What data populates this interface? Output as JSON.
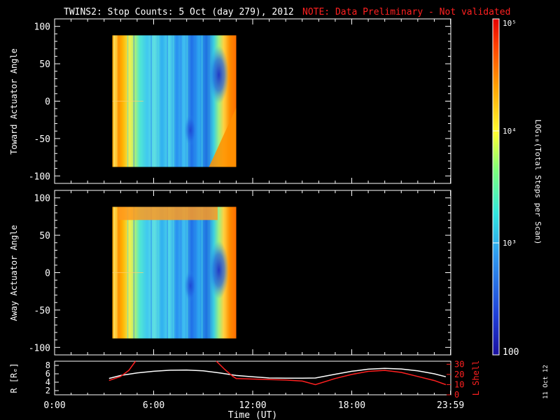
{
  "title": {
    "main": "TWINS2: Stop Counts:  5 Oct (day 279), 2012",
    "note": "NOTE: Data Preliminary - Not validated",
    "note_color": "#ff2020"
  },
  "side_stamp": "11 Oct 12",
  "colorbar": {
    "label": "LOG₁₀(Total Steps per Scan)",
    "ticks": [
      {
        "value": 100,
        "label": "100"
      },
      {
        "value": 1000,
        "label": "10³"
      },
      {
        "value": 10000,
        "label": "10⁴"
      },
      {
        "value": 100000,
        "label": "10⁵"
      }
    ],
    "range": [
      100,
      100000
    ],
    "scale": "log"
  },
  "chart_data": [
    {
      "type": "heatmap",
      "panel": "toward",
      "ylabel": "Toward Actuator Angle",
      "ylim": [
        -110,
        110
      ],
      "yticks": [
        -100,
        -50,
        0,
        50,
        100
      ],
      "xlim": [
        0,
        24
      ],
      "data_time_range": [
        3.5,
        11.0
      ],
      "data_angle_range": [
        -88,
        88
      ],
      "color_scale": "log"
    },
    {
      "type": "heatmap",
      "panel": "away",
      "ylabel": "Away Actuator Angle",
      "ylim": [
        -110,
        110
      ],
      "yticks": [
        -100,
        -50,
        0,
        50,
        100
      ],
      "xlim": [
        0,
        24
      ],
      "data_time_range": [
        3.5,
        11.0
      ],
      "data_angle_range": [
        -88,
        88
      ],
      "color_scale": "log"
    },
    {
      "type": "line",
      "panel": "orbit",
      "ylabel_left": "R [Rₑ]",
      "ylabel_right": "L Shell",
      "ylabel_right_color": "#ff2020",
      "ylim_left": [
        1,
        9
      ],
      "yticks_left": [
        2,
        4,
        6,
        8
      ],
      "ylim_right": [
        0,
        33
      ],
      "yticks_right": [
        0,
        10,
        20,
        30
      ],
      "xlabel": "Time (UT)",
      "xlim": [
        0,
        24
      ],
      "xticks": [
        {
          "value": 0,
          "label": "0:00"
        },
        {
          "value": 6,
          "label": "6:00"
        },
        {
          "value": 12,
          "label": "12:00"
        },
        {
          "value": 18,
          "label": "18:00"
        },
        {
          "value": 23.983,
          "label": "23:59"
        }
      ],
      "series": [
        {
          "color": "#ffffff",
          "axis": "left",
          "x": [
            3.3,
            4,
            5,
            6,
            7,
            8,
            9,
            10,
            11,
            12,
            13,
            14,
            15,
            15.8,
            17,
            18,
            19,
            20,
            21,
            22,
            23,
            23.7
          ],
          "y": [
            4.9,
            5.6,
            6.2,
            6.6,
            6.85,
            6.9,
            6.7,
            6.2,
            5.6,
            5.3,
            5.0,
            4.95,
            4.95,
            5.0,
            5.9,
            6.6,
            7.1,
            7.3,
            7.15,
            6.7,
            6.0,
            5.3
          ]
        },
        {
          "color": "#ff2020",
          "axis": "right",
          "segments": [
            {
              "x": [
                3.3,
                4,
                4.5,
                4.9
              ],
              "y": [
                14,
                18,
                24,
                33
              ]
            },
            {
              "x": [
                9.8,
                10.3,
                10.8,
                11,
                12,
                13,
                14,
                15,
                15.8,
                17,
                18,
                19,
                20,
                21,
                22,
                23,
                23.7
              ],
              "y": [
                33,
                25,
                18,
                16,
                15.5,
                15,
                14.5,
                13.5,
                10,
                16,
                20,
                23,
                24,
                22,
                18,
                14,
                10
              ]
            }
          ]
        }
      ]
    }
  ]
}
